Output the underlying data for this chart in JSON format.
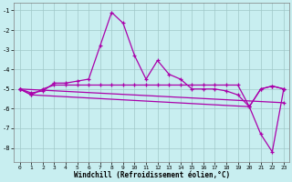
{
  "xlabel": "Windchill (Refroidissement éolien,°C)",
  "bg_color": "#c8eef0",
  "grid_color": "#a0c8c8",
  "line_color": "#aa00aa",
  "xlim": [
    -0.5,
    23.5
  ],
  "ylim": [
    -8.7,
    -0.6
  ],
  "yticks": [
    -8,
    -7,
    -6,
    -5,
    -4,
    -3,
    -2,
    -1
  ],
  "xticks": [
    0,
    1,
    2,
    3,
    4,
    5,
    6,
    7,
    8,
    9,
    10,
    11,
    12,
    13,
    14,
    15,
    16,
    17,
    18,
    19,
    20,
    21,
    22,
    23
  ],
  "line1_x": [
    0,
    1,
    2,
    3,
    4,
    5,
    6,
    7,
    8,
    9,
    10,
    11,
    12,
    13,
    14,
    15,
    16,
    17,
    18,
    19,
    20,
    21,
    22,
    23
  ],
  "line1_y": [
    -5.0,
    -5.2,
    -5.1,
    -4.7,
    -4.7,
    -4.6,
    -4.5,
    -2.8,
    -1.1,
    -1.65,
    -3.3,
    -4.5,
    -3.55,
    -4.25,
    -4.5,
    -5.0,
    -5.0,
    -5.0,
    -5.1,
    -5.3,
    -5.9,
    -5.0,
    -4.85,
    -5.0
  ],
  "line2_x": [
    0,
    1,
    20,
    21,
    22,
    23
  ],
  "line2_y": [
    -5.0,
    -5.3,
    -5.9,
    -7.3,
    -8.2,
    -5.0
  ],
  "line3_x": [
    0,
    1,
    2,
    3,
    4,
    5,
    6,
    7,
    8,
    9,
    10,
    11,
    12,
    13,
    14,
    15,
    16,
    17,
    18,
    19,
    20,
    21,
    22,
    23
  ],
  "line3_y": [
    -5.0,
    -5.3,
    -5.0,
    -4.8,
    -4.8,
    -4.8,
    -4.8,
    -4.8,
    -4.8,
    -4.8,
    -4.8,
    -4.8,
    -4.8,
    -4.8,
    -4.8,
    -4.8,
    -4.8,
    -4.8,
    -4.8,
    -4.8,
    -5.9,
    -5.0,
    -4.85,
    -5.0
  ],
  "line4_x": [
    0,
    23
  ],
  "line4_y": [
    -5.0,
    -5.7
  ]
}
